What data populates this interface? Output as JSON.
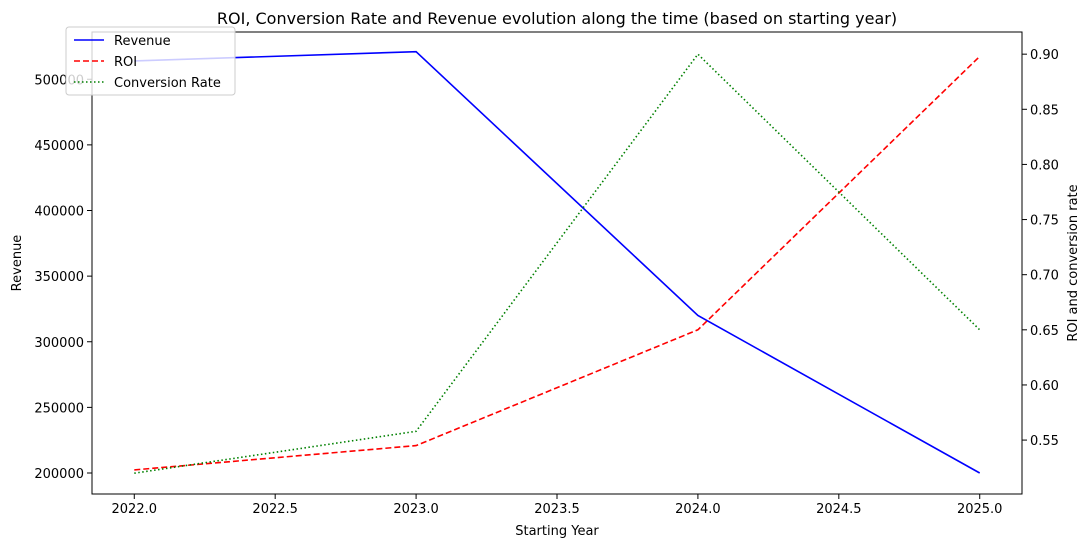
{
  "chart_data": {
    "type": "line",
    "title": "ROI, Conversion Rate and Revenue evolution along the time (based on starting year)",
    "xlabel": "Starting Year",
    "ylabel": "Revenue",
    "y2label": "ROI and conversion rate",
    "x": [
      2022,
      2023,
      2024,
      2025
    ],
    "xticks": [
      "2022.0",
      "2022.5",
      "2023.0",
      "2023.5",
      "2024.0",
      "2024.5",
      "2025.0"
    ],
    "xtick_values": [
      2022.0,
      2022.5,
      2023.0,
      2023.5,
      2024.0,
      2024.5,
      2025.0
    ],
    "xlim": [
      2021.85,
      2025.15
    ],
    "yticks": [
      "200000",
      "250000",
      "300000",
      "350000",
      "400000",
      "450000",
      "500000"
    ],
    "ytick_values": [
      200000,
      250000,
      300000,
      350000,
      400000,
      450000,
      500000
    ],
    "ylim": [
      184000,
      536000
    ],
    "y2ticks": [
      "0.55",
      "0.60",
      "0.65",
      "0.70",
      "0.75",
      "0.80",
      "0.85",
      "0.90"
    ],
    "y2tick_values": [
      0.55,
      0.6,
      0.65,
      0.7,
      0.75,
      0.8,
      0.85,
      0.9
    ],
    "y2lim": [
      0.5011,
      0.9201
    ],
    "legend_position": "top-left",
    "series": [
      {
        "name": "Revenue",
        "axis": "left",
        "values": [
          514000,
          521000,
          320000,
          200000
        ],
        "color": "#0000ff",
        "style": "solid"
      },
      {
        "name": "ROI",
        "axis": "right",
        "values": [
          0.523,
          0.545,
          0.65,
          0.898
        ],
        "color": "#ff0000",
        "style": "dashed"
      },
      {
        "name": "Conversion Rate",
        "axis": "right",
        "values": [
          0.52,
          0.558,
          0.9,
          0.65
        ],
        "color": "#008000",
        "style": "dotted"
      }
    ]
  }
}
